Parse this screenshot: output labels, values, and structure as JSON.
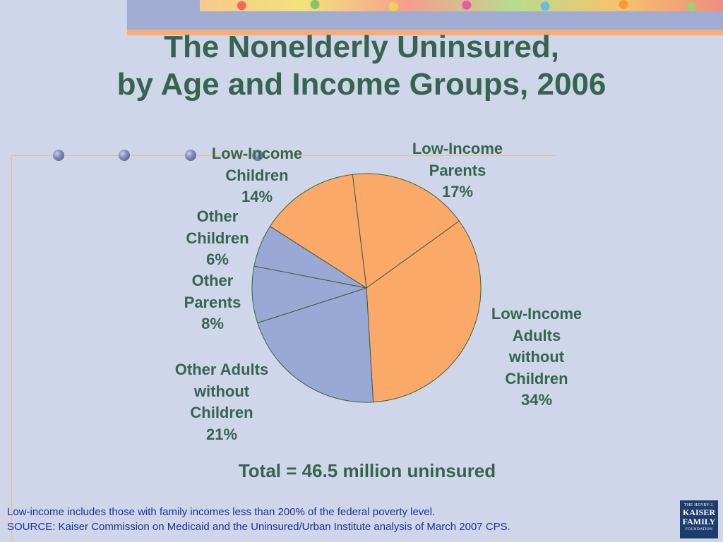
{
  "slide": {
    "title_line1": "The Nonelderly Uninsured,",
    "title_line2": "by Age and Income Groups, 2006",
    "total": "Total = 46.5 million uninsured",
    "footnote1": "Low-income includes those with family incomes less than 200% of the federal poverty level.",
    "footnote2": "SOURCE: Kaiser Commission on Medicaid and the Uninsured/Urban Institute analysis of March 2007 CPS.",
    "logo": {
      "line1": "THE HENRY J.",
      "line2": "KAISER",
      "line3": "FAMILY",
      "line4": "FOUNDATION",
      "color": "#1c3d6e"
    }
  },
  "colors": {
    "low_income": "#fba969",
    "other": "#9aa8d6",
    "text": "#35644f",
    "footnote": "#1f2f94",
    "background": "#cfd6e9"
  },
  "chart_data": {
    "type": "pie",
    "title": "The Nonelderly Uninsured, by Age and Income Groups, 2006",
    "slices": [
      {
        "label_lines": [
          "Low-Income",
          "Parents"
        ],
        "pct_text": "17%",
        "value": 17,
        "color": "#fba969"
      },
      {
        "label_lines": [
          "Low-Income",
          "Adults",
          "without",
          "Children"
        ],
        "pct_text": "34%",
        "value": 34,
        "color": "#fba969"
      },
      {
        "label_lines": [
          "Other Adults",
          "without",
          "Children"
        ],
        "pct_text": "21%",
        "value": 21,
        "color": "#9aa8d6"
      },
      {
        "label_lines": [
          "Other",
          "Parents"
        ],
        "pct_text": "8%",
        "value": 8,
        "color": "#9aa8d6"
      },
      {
        "label_lines": [
          "Other",
          "Children"
        ],
        "pct_text": "6%",
        "value": 6,
        "color": "#9aa8d6"
      },
      {
        "label_lines": [
          "Low-Income",
          "Children"
        ],
        "pct_text": "14%",
        "value": 14,
        "color": "#fba969"
      }
    ],
    "legend": "none"
  }
}
